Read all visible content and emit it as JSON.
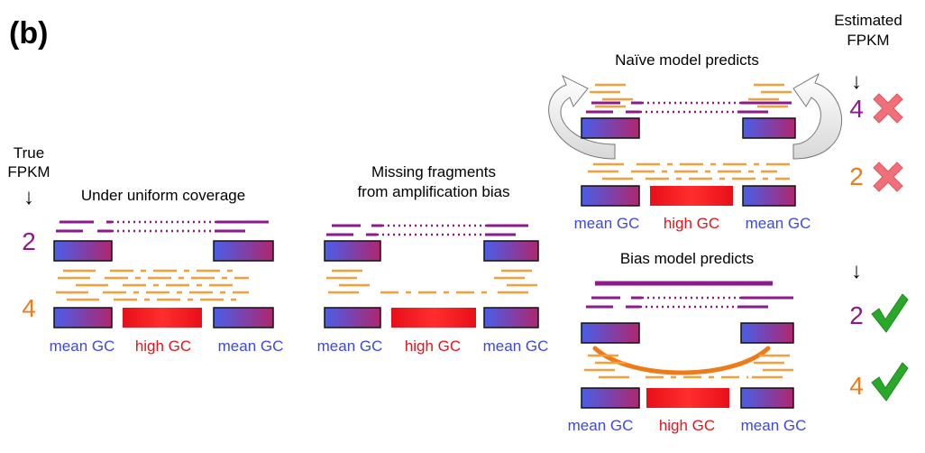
{
  "panel_label": "(b)",
  "true_fpkm": {
    "line1": "True",
    "line2": "FPKM",
    "arrow": "↓"
  },
  "estimated_fpkm": {
    "line1": "Estimated",
    "line2": "FPKM",
    "arrow": "↓"
  },
  "panels": {
    "uniform": {
      "title": "Under uniform coverage"
    },
    "missing": {
      "title_line1": "Missing fragments",
      "title_line2": "from amplification bias"
    },
    "naive": {
      "title": "Naïve model predicts"
    },
    "bias": {
      "title": "Bias model predicts"
    }
  },
  "labels": {
    "mean_gc": "mean GC",
    "high_gc": "high GC"
  },
  "values": {
    "true_purple": "2",
    "true_orange": "4",
    "naive_purple": "4",
    "naive_orange": "2",
    "bias_arrow": "↓",
    "bias_purple": "2",
    "bias_orange": "4"
  },
  "marks": {
    "naive": "cross-icon",
    "bias": "check-icon"
  },
  "colors": {
    "purple": "#8b1a8c",
    "orange": "#f2a03c",
    "orange_text": "#ef7a1a",
    "blue_text": "#3b49e0",
    "red_text": "#e3141c",
    "cross": "#f0707a",
    "check": "#2aa82a",
    "arrow_fill": "#e6e6e6"
  }
}
